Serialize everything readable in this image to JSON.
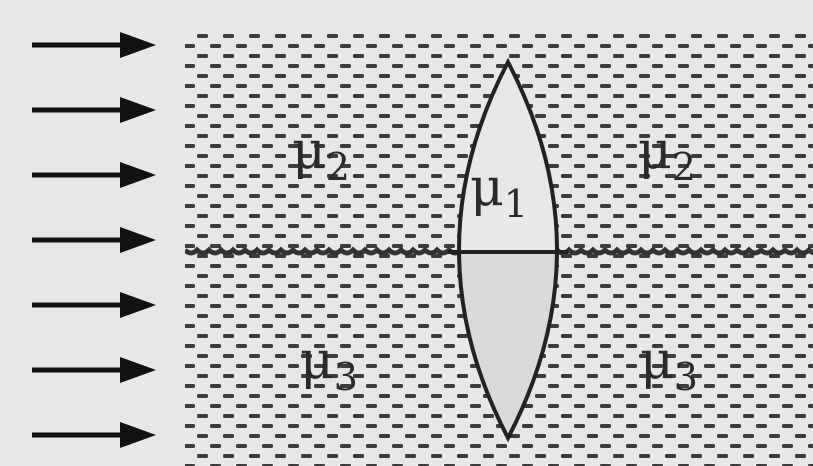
{
  "labels": {
    "top_left": {
      "base": "μ",
      "sub": "2"
    },
    "top_right": {
      "base": "μ",
      "sub": "2"
    },
    "lens_top": {
      "base": "μ",
      "sub": "1"
    },
    "bottom_left": {
      "base": "μ",
      "sub": "3"
    },
    "bottom_right": {
      "base": "μ",
      "sub": "3"
    }
  },
  "colors": {
    "background": "#e7e7e5",
    "medium_dash": "#3c3c3c",
    "lens_top_fill": "#e8e8e6",
    "lens_bottom_fill": "#d9d9d7",
    "outline": "#222222"
  },
  "incident_ray_count": 7
}
